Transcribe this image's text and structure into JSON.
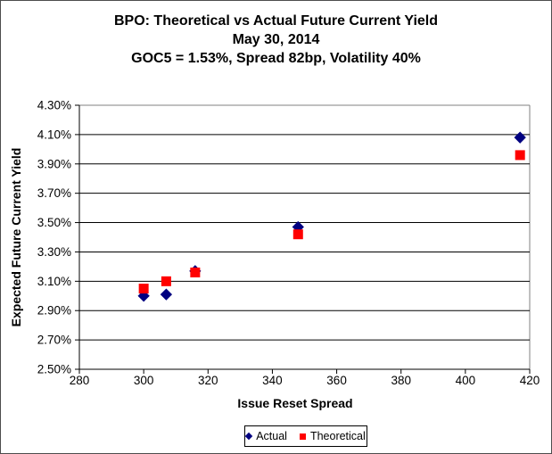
{
  "chart_data": {
    "type": "scatter",
    "title_lines": [
      "BPO: Theoretical vs Actual Future Current Yield",
      "May 30, 2014",
      "GOC5 = 1.53%, Spread 82bp, Volatility 40%"
    ],
    "xlabel": "Issue Reset Spread",
    "ylabel": "Expected Future Current Yield",
    "xlim": [
      280,
      420
    ],
    "xtick_step": 20,
    "ylim": [
      2.5,
      4.3
    ],
    "ytick_step": 0.2,
    "x_tick_labels": [
      "280",
      "300",
      "320",
      "340",
      "360",
      "380",
      "400",
      "420"
    ],
    "y_tick_labels": [
      "4.30%",
      "4.10%",
      "3.90%",
      "3.70%",
      "3.50%",
      "3.30%",
      "3.10%",
      "2.90%",
      "2.70%",
      "2.50%"
    ],
    "grid": true,
    "gridline_color": "#000000",
    "plot_border_color": "#808080",
    "axis_color": "#000000",
    "legend_position": "bottom",
    "series": [
      {
        "name": "Actual",
        "marker": "diamond",
        "color": "#000080",
        "points": [
          [
            300,
            3.0
          ],
          [
            307,
            3.01
          ],
          [
            316,
            3.17
          ],
          [
            348,
            3.47
          ],
          [
            417,
            4.08
          ]
        ]
      },
      {
        "name": "Theoretical",
        "marker": "square",
        "color": "#FF0000",
        "points": [
          [
            300,
            3.05
          ],
          [
            307,
            3.1
          ],
          [
            316,
            3.16
          ],
          [
            348,
            3.42
          ],
          [
            417,
            3.96
          ]
        ]
      }
    ]
  }
}
